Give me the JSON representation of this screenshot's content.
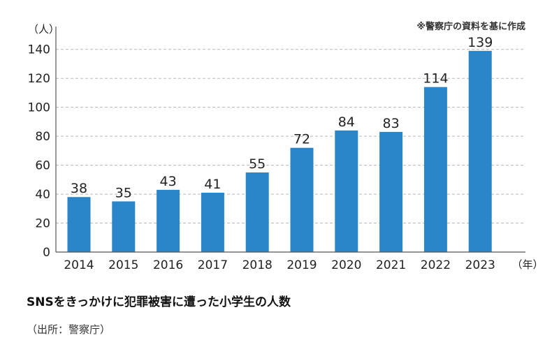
{
  "colors": {
    "bar": "#2a86c8",
    "grid": "#b8b8b8",
    "axis": "#555555"
  },
  "chart_data": {
    "type": "bar",
    "categories": [
      "2014",
      "2015",
      "2016",
      "2017",
      "2018",
      "2019",
      "2020",
      "2021",
      "2022",
      "2023"
    ],
    "values": [
      38,
      35,
      43,
      41,
      55,
      72,
      84,
      83,
      114,
      139
    ],
    "ylim": [
      0,
      150
    ],
    "yticks": [
      0,
      20,
      40,
      60,
      80,
      100,
      120,
      140
    ],
    "y_unit": "（人）",
    "x_unit": "（年）",
    "note": "※警察庁の資料を基に作成",
    "grid": "horizontal dashed",
    "data_labels": true
  },
  "caption": {
    "title": "SNSをきっかけに犯罪被害に遭った小学生の人数",
    "source": "（出所：警察庁）"
  }
}
